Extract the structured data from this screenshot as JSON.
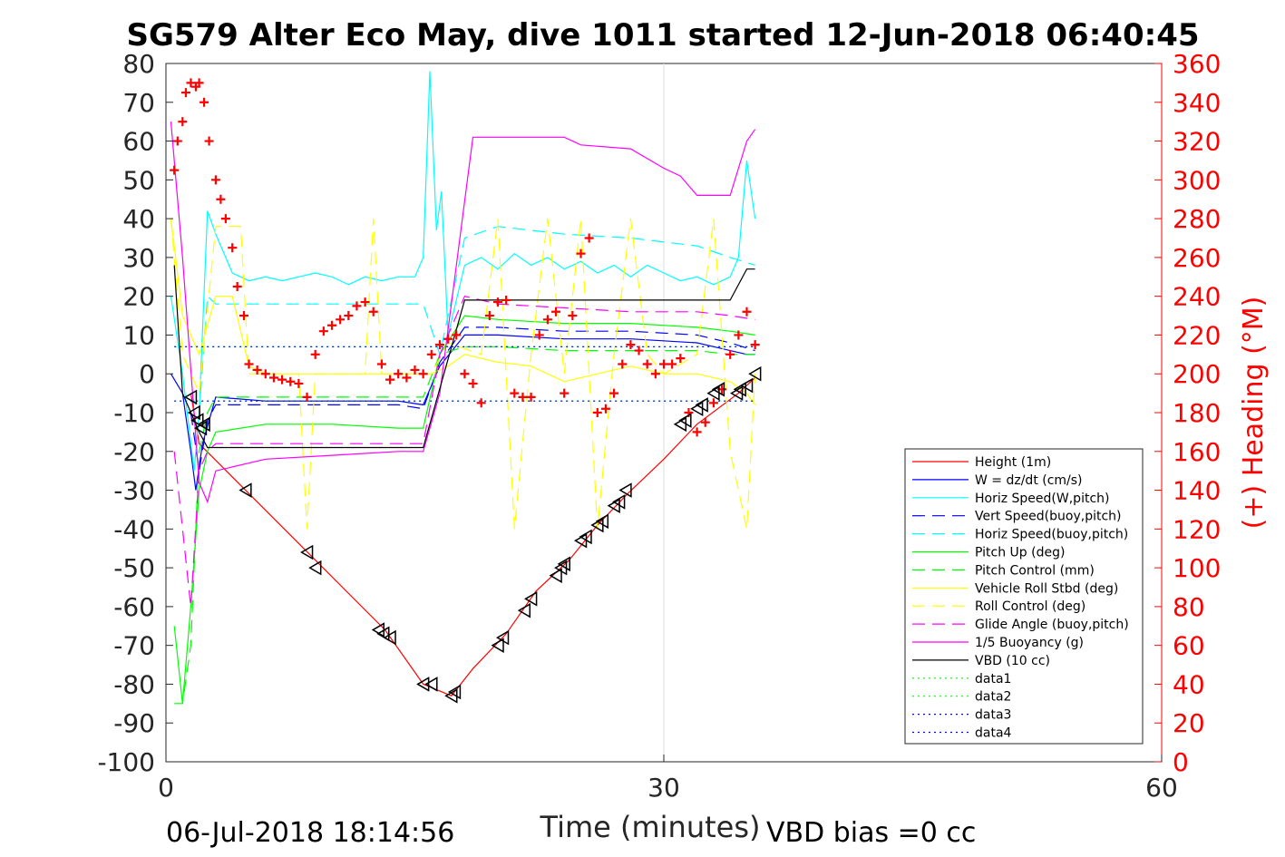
{
  "chart_data": {
    "type": "line",
    "title": "SG579 Alter Eco May, dive 1011 started 12-Jun-2018 06:40:45",
    "xlabel": "Time (minutes)",
    "ylabel_right": "(+) Heading (°M)",
    "footer_left": "06-Jul-2018 18:14:56",
    "footer_right": "VBD bias =0 cc",
    "xlim": [
      0,
      60
    ],
    "ylim": [
      -100,
      80
    ],
    "ylim_right": [
      0,
      360
    ],
    "x_ticks": [
      "0",
      "30",
      "60"
    ],
    "y_ticks": [
      "80",
      "70",
      "60",
      "50",
      "40",
      "30",
      "20",
      "10",
      "0",
      "-10",
      "-20",
      "-30",
      "-40",
      "-50",
      "-60",
      "-70",
      "-80",
      "-90",
      "-100"
    ],
    "y_ticks_right": [
      "360",
      "340",
      "320",
      "300",
      "280",
      "260",
      "240",
      "220",
      "200",
      "180",
      "160",
      "140",
      "120",
      "100",
      "80",
      "60",
      "40",
      "20",
      "0"
    ],
    "grid": "x-only",
    "legend_position": "bottom-right",
    "colors": {
      "red": "#ff0000",
      "blue": "#0000ff",
      "cyan": "#00ffff",
      "green": "#00ff00",
      "yellow": "#ffff00",
      "magenta": "#ff00ff",
      "black": "#000000"
    },
    "series": [
      {
        "name": "Height (1m)",
        "color": "#ff0000",
        "style": "solid",
        "x": [
          1.5,
          2,
          4.8,
          9,
          13.2,
          15.5,
          17.2,
          18.5,
          20.5,
          22.3,
          24.3,
          26,
          27.8,
          30,
          32,
          34.5,
          35.5
        ],
        "y": [
          -5,
          -18,
          -30,
          -48,
          -66,
          -80,
          -83,
          -76,
          -67,
          -56,
          -48,
          -39,
          -31,
          -22,
          -13,
          -5,
          -1
        ]
      },
      {
        "name": "W = dz/dt (cm/s)",
        "color": "#0000ff",
        "style": "solid",
        "x": [
          0.3,
          1,
          1.5,
          1.8,
          2.2,
          3,
          6,
          10,
          14,
          15.5,
          16.5,
          18,
          20,
          24,
          28,
          32,
          34,
          35,
          35.5
        ],
        "y": [
          0,
          -5,
          -20,
          -30,
          -18,
          -6,
          -7,
          -7,
          -7,
          -8,
          2,
          10,
          10,
          9,
          9,
          8,
          6,
          5,
          5
        ]
      },
      {
        "name": "Horiz Speed(W,pitch)",
        "color": "#00ffff",
        "style": "solid",
        "x": [
          0.3,
          1,
          1.7,
          2,
          2.5,
          3,
          4,
          5,
          6,
          7,
          8,
          9,
          10,
          11,
          12,
          13,
          14,
          15,
          15.5,
          15.9,
          16.3,
          16.6,
          17,
          18,
          19,
          20,
          21,
          22,
          23,
          24,
          25,
          26,
          27,
          28,
          29,
          30,
          31,
          32,
          33,
          34,
          34.5,
          35,
          35.5
        ],
        "y": [
          20,
          0,
          -25,
          -10,
          42,
          36,
          26,
          24,
          25,
          24,
          25,
          26,
          25,
          23,
          25,
          24,
          25,
          25,
          30,
          78,
          37,
          47,
          10,
          28,
          30,
          27,
          31,
          28,
          30,
          27,
          29,
          26,
          28,
          25,
          28,
          26,
          24,
          25,
          23,
          25,
          30,
          55,
          40
        ]
      },
      {
        "name": "Vert Speed(buoy,pitch)",
        "color": "#0000ff",
        "style": "dashed",
        "x": [
          1.5,
          2,
          2.5,
          3,
          6,
          10,
          14,
          15.5,
          16.5,
          18,
          20,
          24,
          28,
          32,
          34,
          35.5
        ],
        "y": [
          -10,
          -25,
          -12,
          -8,
          -8,
          -8,
          -8,
          -9,
          3,
          12,
          12,
          11,
          11,
          10,
          8,
          6
        ]
      },
      {
        "name": "Horiz Speed(buoy,pitch)",
        "color": "#00ffff",
        "style": "dashed",
        "x": [
          1.5,
          2,
          2.5,
          3,
          6,
          10,
          14,
          15.5,
          16.5,
          18,
          20,
          24,
          28,
          32,
          34,
          35.5
        ],
        "y": [
          -5,
          -10,
          20,
          18,
          18,
          18,
          18,
          18,
          5,
          35,
          38,
          36,
          35,
          33,
          30,
          28
        ]
      },
      {
        "name": "Pitch Up (deg)",
        "color": "#00ff00",
        "style": "solid",
        "x": [
          0.5,
          1,
          1.5,
          2,
          2.5,
          3,
          6,
          10,
          14,
          15.5,
          16.5,
          18,
          20,
          24,
          28,
          32,
          34,
          35.5
        ],
        "y": [
          -65,
          -85,
          -60,
          -30,
          -20,
          -15,
          -13,
          -13,
          -14,
          -14,
          5,
          15,
          14,
          13,
          13,
          12,
          11,
          10
        ]
      },
      {
        "name": "Pitch Control (mm)",
        "color": "#00ff00",
        "style": "dashed",
        "x": [
          0.5,
          1,
          1.5,
          2,
          2.5,
          3,
          6,
          10,
          14,
          15.5,
          16.5,
          18,
          20,
          24,
          28,
          32,
          34,
          35.5
        ],
        "y": [
          -85,
          -85,
          -70,
          -20,
          -10,
          -6,
          -6,
          -6,
          -6,
          -6,
          5,
          7,
          7,
          6,
          6,
          6,
          5,
          5
        ]
      },
      {
        "name": "Vehicle Roll Stbd (deg)",
        "color": "#ffff00",
        "style": "solid",
        "x": [
          0.3,
          1,
          2,
          3,
          4,
          5,
          6,
          8,
          10,
          12,
          14,
          15,
          16,
          17,
          18,
          20,
          22,
          24,
          26,
          28,
          30,
          32,
          34,
          35,
          35.5
        ],
        "y": [
          40,
          15,
          5,
          20,
          20,
          2,
          0,
          0,
          0,
          0,
          0,
          0,
          0,
          2,
          5,
          3,
          2,
          -2,
          0,
          2,
          0,
          0,
          -2,
          -5,
          -8
        ]
      },
      {
        "name": "Roll Control (deg)",
        "color": "#ffff00",
        "style": "dashed",
        "x": [
          0.3,
          1,
          2,
          3,
          4.5,
          5,
          8,
          8.5,
          9,
          12,
          12.5,
          13,
          16,
          17,
          19,
          20,
          21,
          22,
          23,
          24,
          25,
          26,
          27,
          28,
          29,
          30,
          32,
          33,
          34,
          35,
          35.5
        ],
        "y": [
          40,
          5,
          -5,
          38,
          38,
          0,
          0,
          -40,
          0,
          0,
          40,
          0,
          0,
          8,
          5,
          40,
          -40,
          5,
          40,
          0,
          40,
          -40,
          5,
          40,
          5,
          0,
          5,
          40,
          -20,
          -40,
          0
        ]
      },
      {
        "name": "Glide Angle (buoy,pitch)",
        "color": "#ff00ff",
        "style": "dashed",
        "x": [
          0.5,
          1,
          1.5,
          2,
          2.5,
          3,
          6,
          10,
          14,
          15.5,
          16.5,
          18,
          20,
          24,
          28,
          32,
          34,
          35.5
        ],
        "y": [
          -20,
          -40,
          -60,
          -25,
          -20,
          -18,
          -18,
          -18,
          -18,
          -18,
          5,
          20,
          18,
          17,
          16,
          16,
          15,
          14
        ]
      },
      {
        "name": "1/5 Buoyancy (g)",
        "color": "#ff00ff",
        "style": "solid",
        "x": [
          0.3,
          1,
          2,
          2.5,
          3,
          6,
          10,
          14,
          15.5,
          16.5,
          18.5,
          20,
          24,
          25,
          28,
          30,
          31,
          32,
          33,
          34,
          35,
          35.5
        ],
        "y": [
          65,
          30,
          -28,
          -33,
          -25,
          -22,
          -21,
          -20,
          -20,
          -5,
          61,
          61,
          61,
          59,
          58,
          53,
          51,
          46,
          46,
          46,
          60,
          63
        ]
      },
      {
        "name": "VBD (10 cc)",
        "color": "#000000",
        "style": "solid",
        "x": [
          0.5,
          1,
          2,
          2.5,
          3,
          6,
          10,
          14,
          15.5,
          18,
          19,
          20,
          24,
          28,
          32,
          34,
          35,
          35.5
        ],
        "y": [
          28,
          -5,
          -15,
          -19,
          -19,
          -19,
          -19,
          -19,
          -19,
          19,
          19,
          19,
          19,
          19,
          19,
          19,
          27,
          27
        ]
      },
      {
        "name": "data1",
        "color": "#00ff00",
        "style": "dotted",
        "x": [
          0.5,
          35.5
        ],
        "y": [
          7,
          7
        ]
      },
      {
        "name": "data2",
        "color": "#00ff00",
        "style": "dotted",
        "x": [
          0.5,
          35.5
        ],
        "y": [
          -7,
          -7
        ]
      },
      {
        "name": "data3",
        "color": "#0000ff",
        "style": "dotted",
        "x": [
          0.5,
          35.5
        ],
        "y": [
          7,
          7
        ]
      },
      {
        "name": "data4",
        "color": "#0000ff",
        "style": "dotted",
        "x": [
          0.5,
          35.5
        ],
        "y": [
          -7,
          -7
        ]
      }
    ],
    "heading_points": {
      "color": "#ff0000",
      "axis": "right",
      "x": [
        0.5,
        0.7,
        1,
        1.2,
        1.5,
        1.8,
        2,
        2.3,
        2.6,
        3,
        3.3,
        3.6,
        4,
        4.3,
        4.7,
        5,
        5.5,
        6,
        6.5,
        7,
        7.5,
        8,
        8.5,
        9,
        9.5,
        10,
        10.5,
        11,
        11.5,
        12,
        12.5,
        13,
        13.5,
        14,
        14.5,
        15,
        15.5,
        16,
        16.5,
        17,
        17.5,
        18,
        18.5,
        19,
        19.5,
        20,
        20.5,
        21,
        21.5,
        22,
        22.5,
        23,
        23.5,
        24,
        24.5,
        25,
        25.5,
        26,
        26.5,
        27,
        27.5,
        28,
        28.5,
        29,
        29.5,
        30,
        30.5,
        31,
        31.5,
        32,
        32.5,
        33,
        33.5,
        34,
        34.5,
        35,
        35.5
      ],
      "y": [
        305,
        320,
        330,
        345,
        350,
        348,
        350,
        340,
        320,
        300,
        290,
        280,
        265,
        245,
        230,
        205,
        202,
        200,
        198,
        197,
        196,
        195,
        188,
        210,
        222,
        225,
        228,
        230,
        235,
        237,
        232,
        205,
        197,
        200,
        198,
        202,
        200,
        210,
        215,
        218,
        220,
        200,
        195,
        185,
        230,
        237,
        238,
        190,
        188,
        188,
        220,
        228,
        232,
        190,
        230,
        262,
        270,
        180,
        182,
        190,
        205,
        215,
        212,
        205,
        200,
        205,
        205,
        208,
        180,
        170,
        175,
        185,
        192,
        210,
        220,
        232,
        215
      ]
    },
    "markers": {
      "symbol": "triangle",
      "color": "#000000",
      "x": [
        1.5,
        1.7,
        1.9,
        2.1,
        2.3,
        4.8,
        8.5,
        9,
        12.8,
        13.1,
        13.5,
        15.5,
        16,
        17.2,
        17.4,
        20,
        20.3,
        21.6,
        22,
        23.5,
        23.8,
        24,
        25,
        25.3,
        26,
        26.3,
        27,
        27.3,
        27.7,
        31,
        31.3,
        32,
        32.3,
        33,
        33.3,
        34.4,
        34.6,
        35,
        35.5
      ],
      "y": [
        -6,
        -10,
        -12,
        -14,
        -13,
        -30,
        -46,
        -50,
        -66,
        -67,
        -68,
        -80,
        -80,
        -83,
        -82,
        -70,
        -68,
        -61,
        -58,
        -52,
        -50,
        -49,
        -43,
        -42,
        -39,
        -38,
        -34,
        -33,
        -30,
        -13,
        -12,
        -9,
        -8,
        -5,
        -4,
        -5,
        -4,
        -3,
        0
      ]
    }
  }
}
